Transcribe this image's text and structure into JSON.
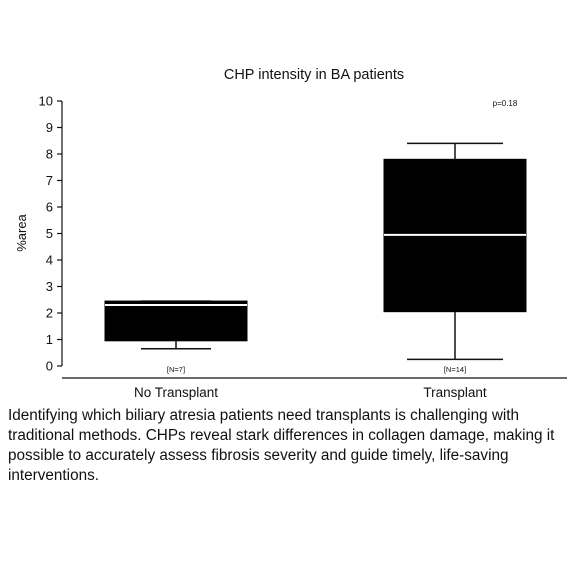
{
  "chart_data": {
    "type": "box",
    "title": "CHP intensity in BA patients",
    "ylabel": "%area",
    "xlabel": "",
    "ylim": [
      0,
      10
    ],
    "yticks": [
      0,
      1,
      2,
      3,
      4,
      5,
      6,
      7,
      8,
      9,
      10
    ],
    "annotation": "p=0.18",
    "categories": [
      "No Transplant",
      "Transplant"
    ],
    "n_labels": [
      "[N=7]",
      "[N=14]"
    ],
    "boxes": [
      {
        "category": "No Transplant",
        "whisker_low": 0.65,
        "q1": 0.95,
        "median": 2.3,
        "q3": 2.45,
        "whisker_high": 2.45
      },
      {
        "category": "Transplant",
        "whisker_low": 0.25,
        "q1": 2.05,
        "median": 4.95,
        "q3": 7.8,
        "whisker_high": 8.4
      }
    ]
  },
  "caption": "Identifying which biliary atresia patients need transplants is challenging with traditional methods. CHPs reveal stark differences in collagen damage, making it possible to accurately assess fibrosis severity and guide timely, life-saving interventions."
}
